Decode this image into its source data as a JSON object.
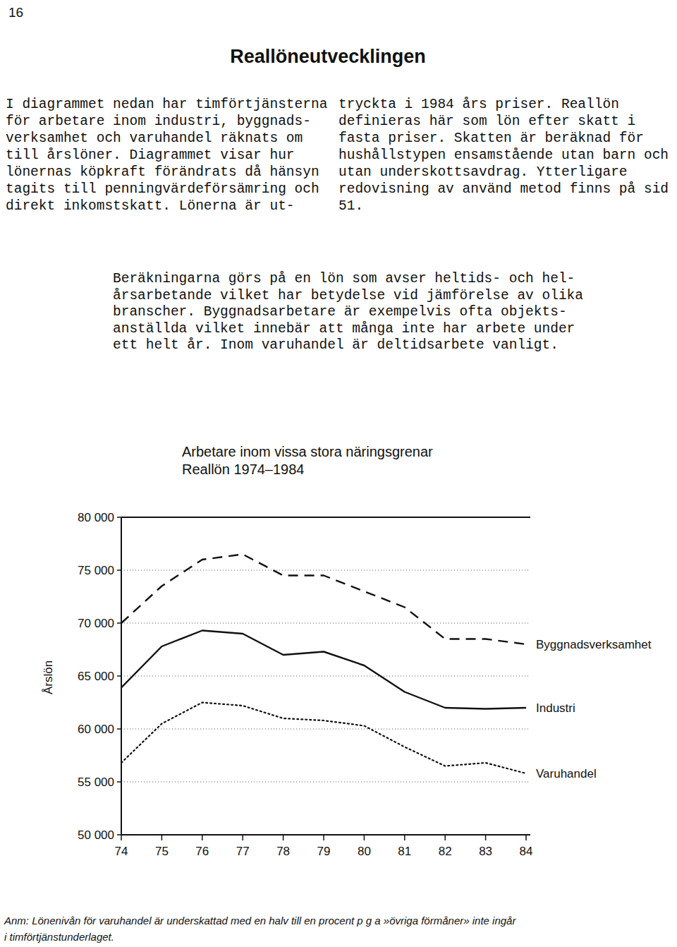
{
  "page": {
    "page_number": "16",
    "heading": "Reallöneutvecklingen",
    "columns": [
      [
        "I diagrammet nedan har timförtjänsterna",
        "för arbetare inom industri, byggnads-",
        "verksamhet och varuhandel räknats om",
        "till årslöner. Diagrammet visar hur",
        "lönernas köpkraft förändrats då hänsyn",
        "tagits till penningvärdeförsämring och",
        "direkt inkomstskatt. Lönerna är ut-"
      ],
      [
        "tryckta i 1984 års priser. Reallön",
        "definieras här som lön efter skatt i",
        "fasta priser. Skatten är beräknad för",
        "hushållstypen ensamstående utan barn och",
        "utan underskottsavdrag. Ytterligare",
        "redovisning av använd metod finns på sid",
        "51."
      ]
    ],
    "paragraph": [
      "Beräkningarna görs på en lön som avser heltids- och hel-",
      "årsarbetande vilket har betydelse vid jämförelse av olika",
      "branscher. Byggnadsarbetare är exempelvis ofta objekts-",
      "anställda vilket innebär att många inte har arbete under",
      "ett helt år. Inom varuhandel är deltidsarbete vanligt."
    ],
    "note": [
      "Anm: Lönenivån för varuhandel är underskattad med en halv till en procent p g a »övriga förmåner» inte ingår",
      "i timförtjänstunderlaget."
    ]
  },
  "chart_data": {
    "type": "line",
    "title": "Arbetare inom vissa stora näringsgrenar",
    "subtitle": "Reallön 1974–1984",
    "y_label": "Årslön",
    "categories": [
      "74",
      "75",
      "76",
      "77",
      "78",
      "79",
      "80",
      "81",
      "82",
      "83",
      "84"
    ],
    "series": [
      {
        "name": "Byggnadsverksamhet",
        "color": "#111111",
        "line_style": "dashed",
        "values": [
          70000,
          73500,
          76000,
          76500,
          74500,
          74500,
          73000,
          71500,
          68500,
          68500,
          68000
        ]
      },
      {
        "name": "Industri",
        "color": "#111111",
        "line_style": "solid",
        "values": [
          63900,
          67800,
          69300,
          69000,
          67000,
          67300,
          66000,
          63500,
          62000,
          61900,
          62000
        ]
      },
      {
        "name": "Varuhandel",
        "color": "#111111",
        "line_style": "dotted",
        "values": [
          56800,
          60500,
          62500,
          62200,
          61000,
          60800,
          60300,
          58300,
          56500,
          56800,
          55800
        ]
      }
    ],
    "ylim": [
      50000,
      80000
    ],
    "yticks": [
      {
        "value": 50000,
        "label": "50 000"
      },
      {
        "value": 55000,
        "label": "55 000"
      },
      {
        "value": 60000,
        "label": "60 000"
      },
      {
        "value": 65000,
        "label": "65 000"
      },
      {
        "value": 70000,
        "label": "70 000"
      },
      {
        "value": 75000,
        "label": "75 000"
      },
      {
        "value": 80000,
        "label": "80 000"
      }
    ],
    "grid": true
  }
}
